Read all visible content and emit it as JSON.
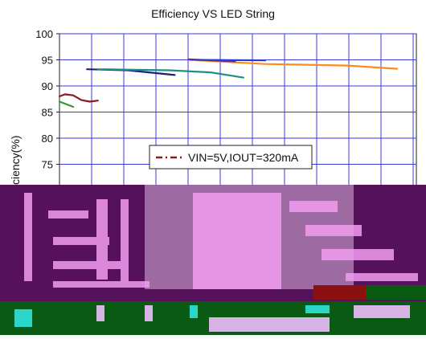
{
  "chart_data": {
    "type": "line",
    "title": "Efficiency VS LED String",
    "ylabel": "ciency(%)",
    "y_ticks": [
      "100",
      "95",
      "90",
      "85",
      "80",
      "75"
    ],
    "ylim": [
      70,
      100
    ],
    "grid": true,
    "legend": {
      "placement": "bottom-center",
      "entries": [
        "VIN=5V,IOUT=320mA"
      ]
    },
    "series": [
      {
        "name": "VIN=5V,IOUT=320mA",
        "color": "#8b1a1a",
        "dashed": true,
        "x": [
          0,
          0.04,
          0.1,
          0.16,
          0.22,
          0.28
        ],
        "y": [
          88.0,
          88.4,
          88.2,
          87.3,
          87.0,
          87.2
        ]
      },
      {
        "color": "#2e9a2e",
        "x": [
          0,
          0.1
        ],
        "y": [
          87.0,
          86.0
        ]
      },
      {
        "color": "#1a237e",
        "x": [
          0.2,
          0.5,
          0.84
        ],
        "y": [
          93.2,
          93.0,
          92.1
        ]
      },
      {
        "color": "#1f8f86",
        "x": [
          0.28,
          0.8,
          1.1,
          1.34
        ],
        "y": [
          93.2,
          93.0,
          92.6,
          91.6
        ]
      },
      {
        "color": "#ff8c1a",
        "x": [
          0.94,
          1.5,
          2.1,
          2.46
        ],
        "y": [
          95.0,
          94.2,
          93.9,
          93.3
        ]
      },
      {
        "color": "#6b2a8a",
        "x": [
          0.94,
          1.28
        ],
        "y": [
          95.1,
          94.7
        ]
      },
      {
        "color": "#2b3bd6",
        "x": [
          1.0,
          1.5
        ],
        "y": [
          95.0,
          94.9
        ]
      }
    ]
  }
}
